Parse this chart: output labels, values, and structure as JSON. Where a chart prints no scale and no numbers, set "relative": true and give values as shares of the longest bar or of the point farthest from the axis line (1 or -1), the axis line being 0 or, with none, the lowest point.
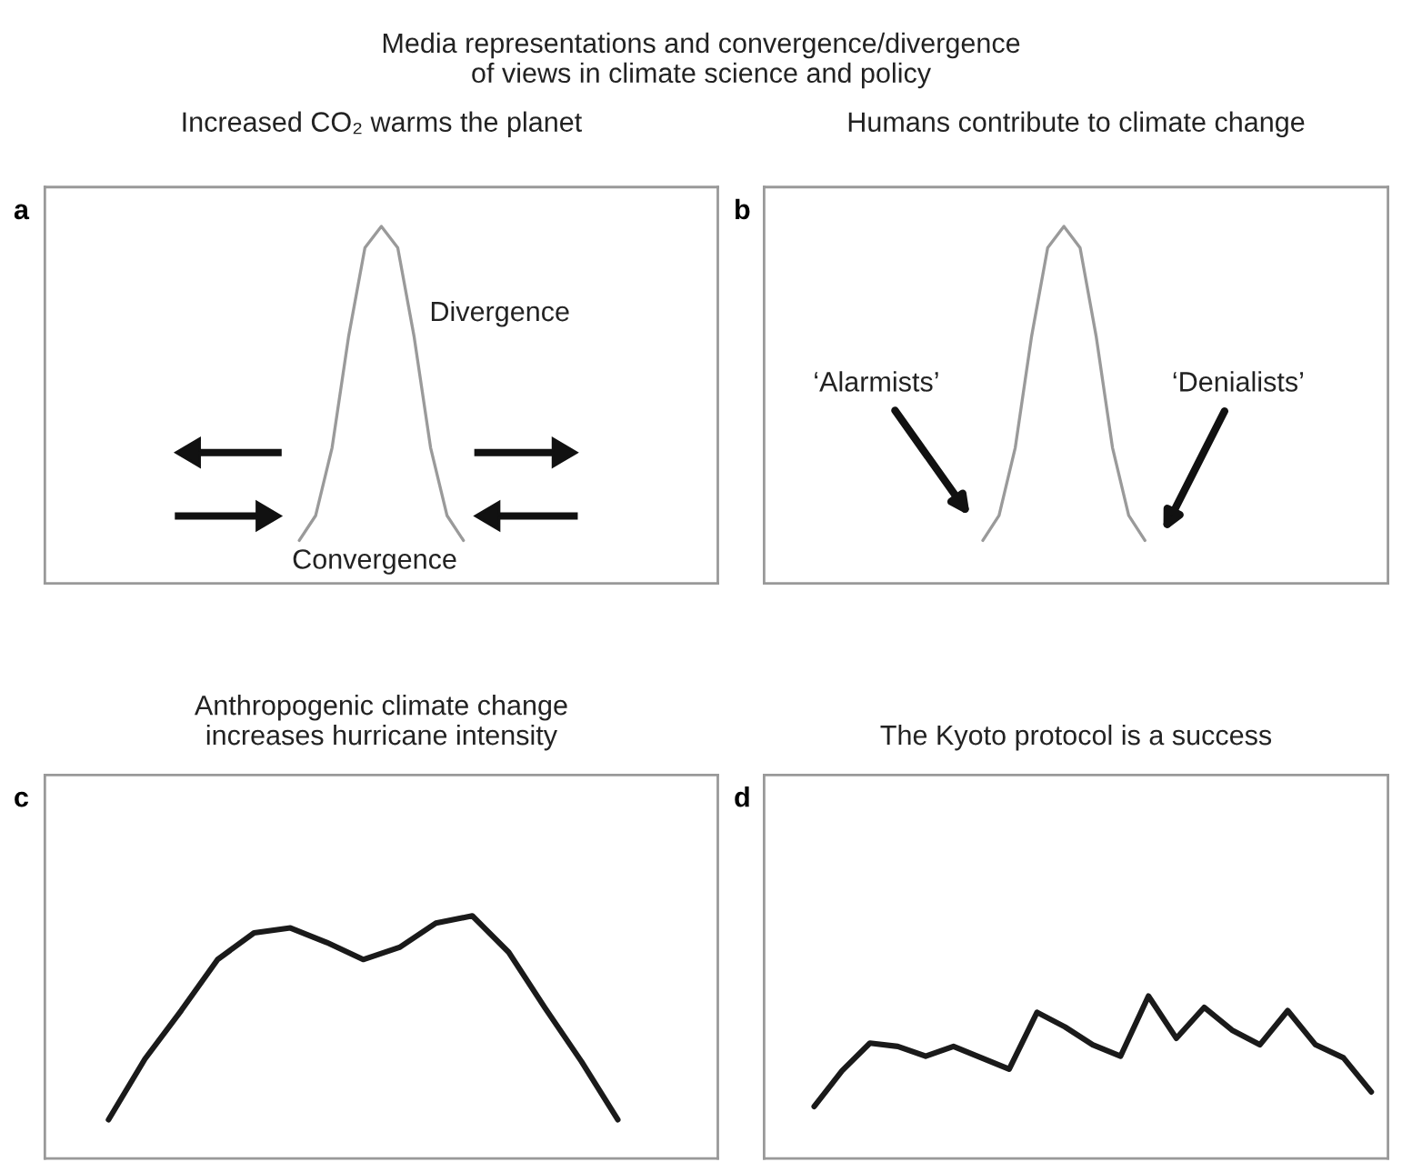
{
  "chart_data": [
    {
      "type": "line",
      "relative": true,
      "title": "Increased CO₂ warms the planet",
      "annotations": [
        "Media representations and convergence/divergence\nof views in climate science and policy",
        "a",
        "Divergence",
        "Convergence"
      ],
      "categories": [
        null,
        null,
        null,
        null,
        null,
        null,
        null,
        null,
        null,
        null,
        null
      ],
      "series": [
        {
          "color": "#9a9a9a",
          "values": [
            0.12,
            0.19,
            0.38,
            0.69,
            0.94,
            1,
            0.94,
            0.69,
            0.38,
            0.19,
            0.12
          ]
        }
      ]
    },
    {
      "type": "line",
      "relative": true,
      "title": "Humans contribute to climate change",
      "annotations": [
        "b",
        "‘Alarmists’",
        "‘Denialists’"
      ],
      "categories": [
        null,
        null,
        null,
        null,
        null,
        null,
        null,
        null,
        null,
        null,
        null
      ],
      "series": [
        {
          "color": "#9a9a9a",
          "values": [
            0.12,
            0.19,
            0.38,
            0.69,
            0.94,
            1,
            0.94,
            0.69,
            0.38,
            0.19,
            0.12
          ]
        }
      ]
    },
    {
      "type": "line",
      "relative": true,
      "title": "Anthropogenic climate change\nincreases hurricane intensity",
      "annotations": [
        "c"
      ],
      "categories": [
        null,
        null,
        null,
        null,
        null,
        null,
        null,
        null,
        null,
        null,
        null,
        null,
        null,
        null,
        null
      ],
      "series": [
        {
          "color": "#1a1a1a",
          "values": [
            0.16,
            0.41,
            0.61,
            0.82,
            0.93,
            0.95,
            0.89,
            0.82,
            0.87,
            0.97,
            1,
            0.85,
            0.62,
            0.4,
            0.16
          ]
        }
      ]
    },
    {
      "type": "line",
      "relative": true,
      "title": "The Kyoto protocol is a success",
      "annotations": [
        "d"
      ],
      "categories": [
        null,
        null,
        null,
        null,
        null,
        null,
        null,
        null,
        null,
        null,
        null,
        null,
        null,
        null,
        null,
        null,
        null,
        null,
        null,
        null,
        null
      ],
      "series": [
        {
          "color": "#1a1a1a",
          "values": [
            0.32,
            0.54,
            0.71,
            0.69,
            0.63,
            0.69,
            0.62,
            0.55,
            0.9,
            0.81,
            0.7,
            0.63,
            1,
            0.74,
            0.93,
            0.79,
            0.7,
            0.91,
            0.7,
            0.62,
            0.41
          ]
        }
      ]
    }
  ]
}
